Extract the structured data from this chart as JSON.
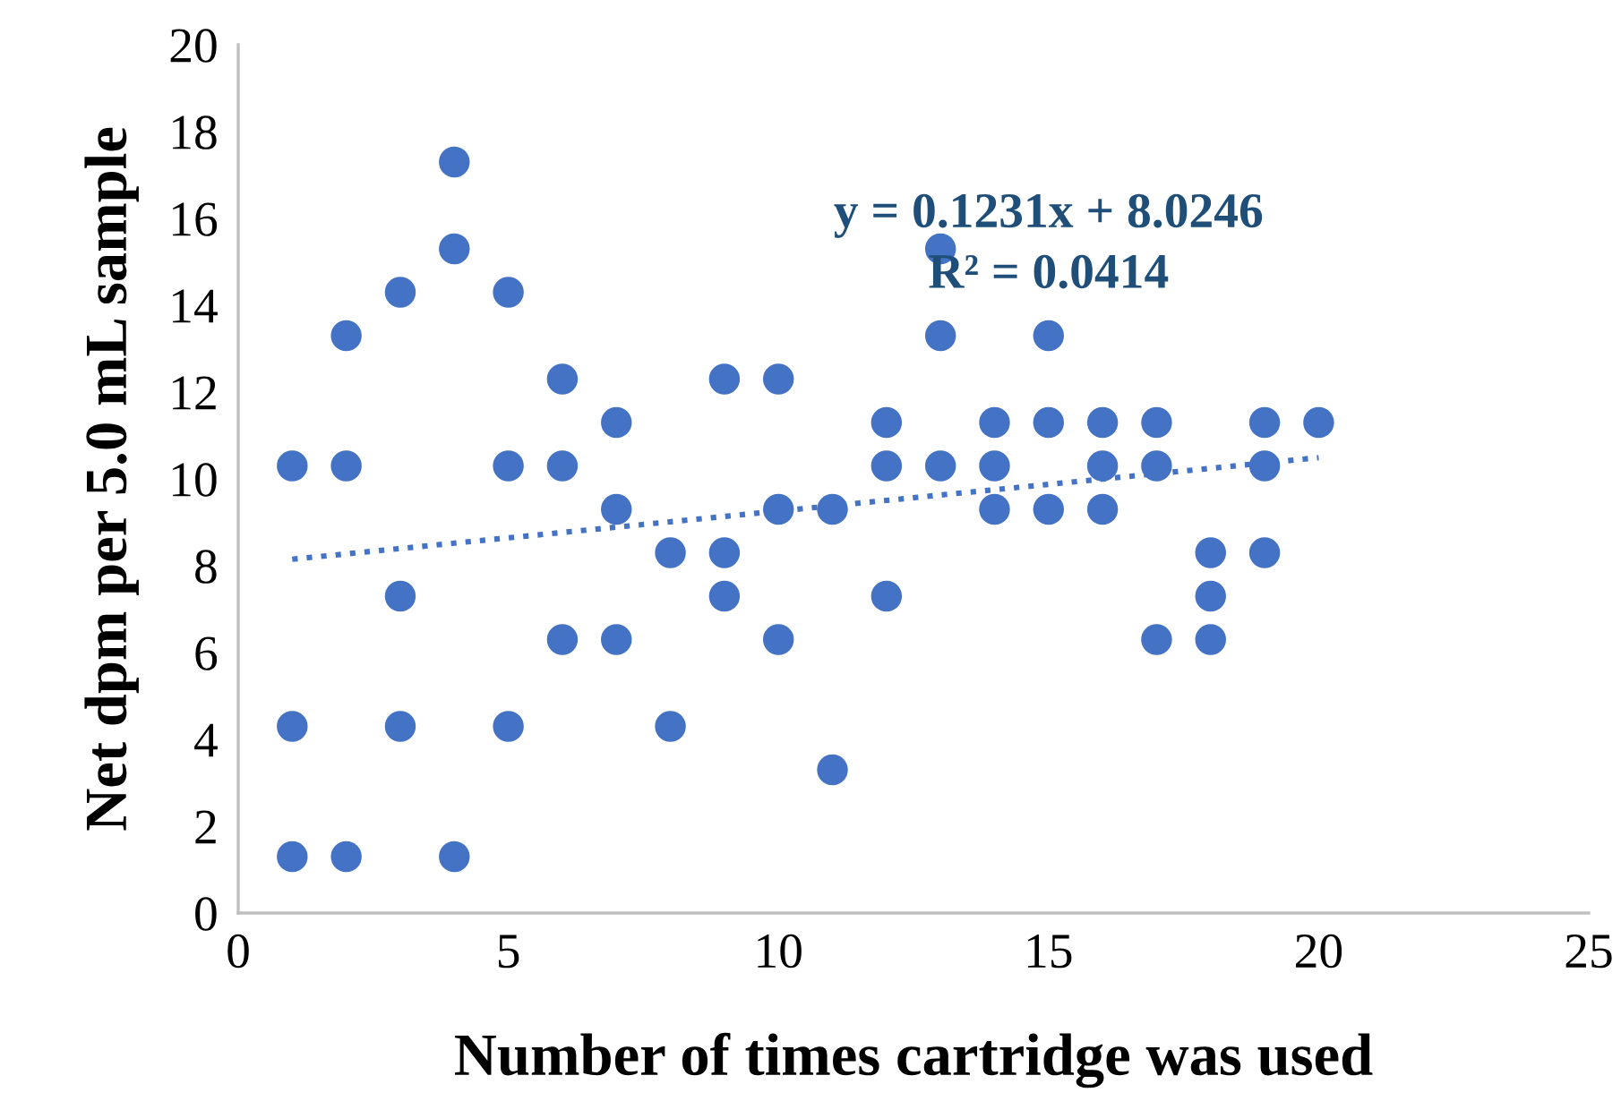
{
  "chart_data": {
    "type": "scatter",
    "xlabel": "Number of times cartridge was used",
    "ylabel": "Net dpm per 5.0 mL sample",
    "xlim": [
      0,
      25
    ],
    "xticks": [
      0,
      5,
      10,
      15,
      20,
      25
    ],
    "ylim": [
      0,
      20
    ],
    "yticks": [
      0,
      2,
      4,
      6,
      8,
      10,
      12,
      14,
      16,
      18,
      20
    ],
    "grid": false,
    "marker": "circle",
    "series": [
      {
        "color": "#4472c4",
        "x": [
          1,
          1,
          1,
          2,
          2,
          2,
          3,
          3,
          3,
          4,
          4,
          4,
          5,
          5,
          5,
          6,
          6,
          6,
          7,
          7,
          7,
          8,
          8,
          9,
          9,
          9,
          10,
          10,
          10,
          11,
          11,
          12,
          12,
          12,
          13,
          13,
          13,
          14,
          14,
          14,
          15,
          15,
          15,
          16,
          16,
          16,
          17,
          17,
          17,
          18,
          18,
          18,
          19,
          19,
          19,
          20
        ],
        "values": [
          10.3,
          4.3,
          1.3,
          13.3,
          10.3,
          1.3,
          14.3,
          7.3,
          4.3,
          17.3,
          15.3,
          1.3,
          14.3,
          10.3,
          4.3,
          12.3,
          10.3,
          6.3,
          11.3,
          9.3,
          6.3,
          8.3,
          4.3,
          12.3,
          8.3,
          7.3,
          12.3,
          9.3,
          6.3,
          9.3,
          3.3,
          11.3,
          10.3,
          7.3,
          15.3,
          13.3,
          10.3,
          11.3,
          10.3,
          9.3,
          13.3,
          11.3,
          9.3,
          11.3,
          10.3,
          9.3,
          11.3,
          10.3,
          6.3,
          8.3,
          7.3,
          6.3,
          11.3,
          10.3,
          8.3,
          11.3
        ]
      },
      {
        "type": "line",
        "color": "#4472c4",
        "line_style": "dotted",
        "marker": "none",
        "x": [
          1,
          20
        ],
        "values": [
          8.15,
          10.49
        ]
      }
    ],
    "annotations": [
      "y = 0.1231x + 8.0246",
      "R² = 0.0414"
    ]
  }
}
